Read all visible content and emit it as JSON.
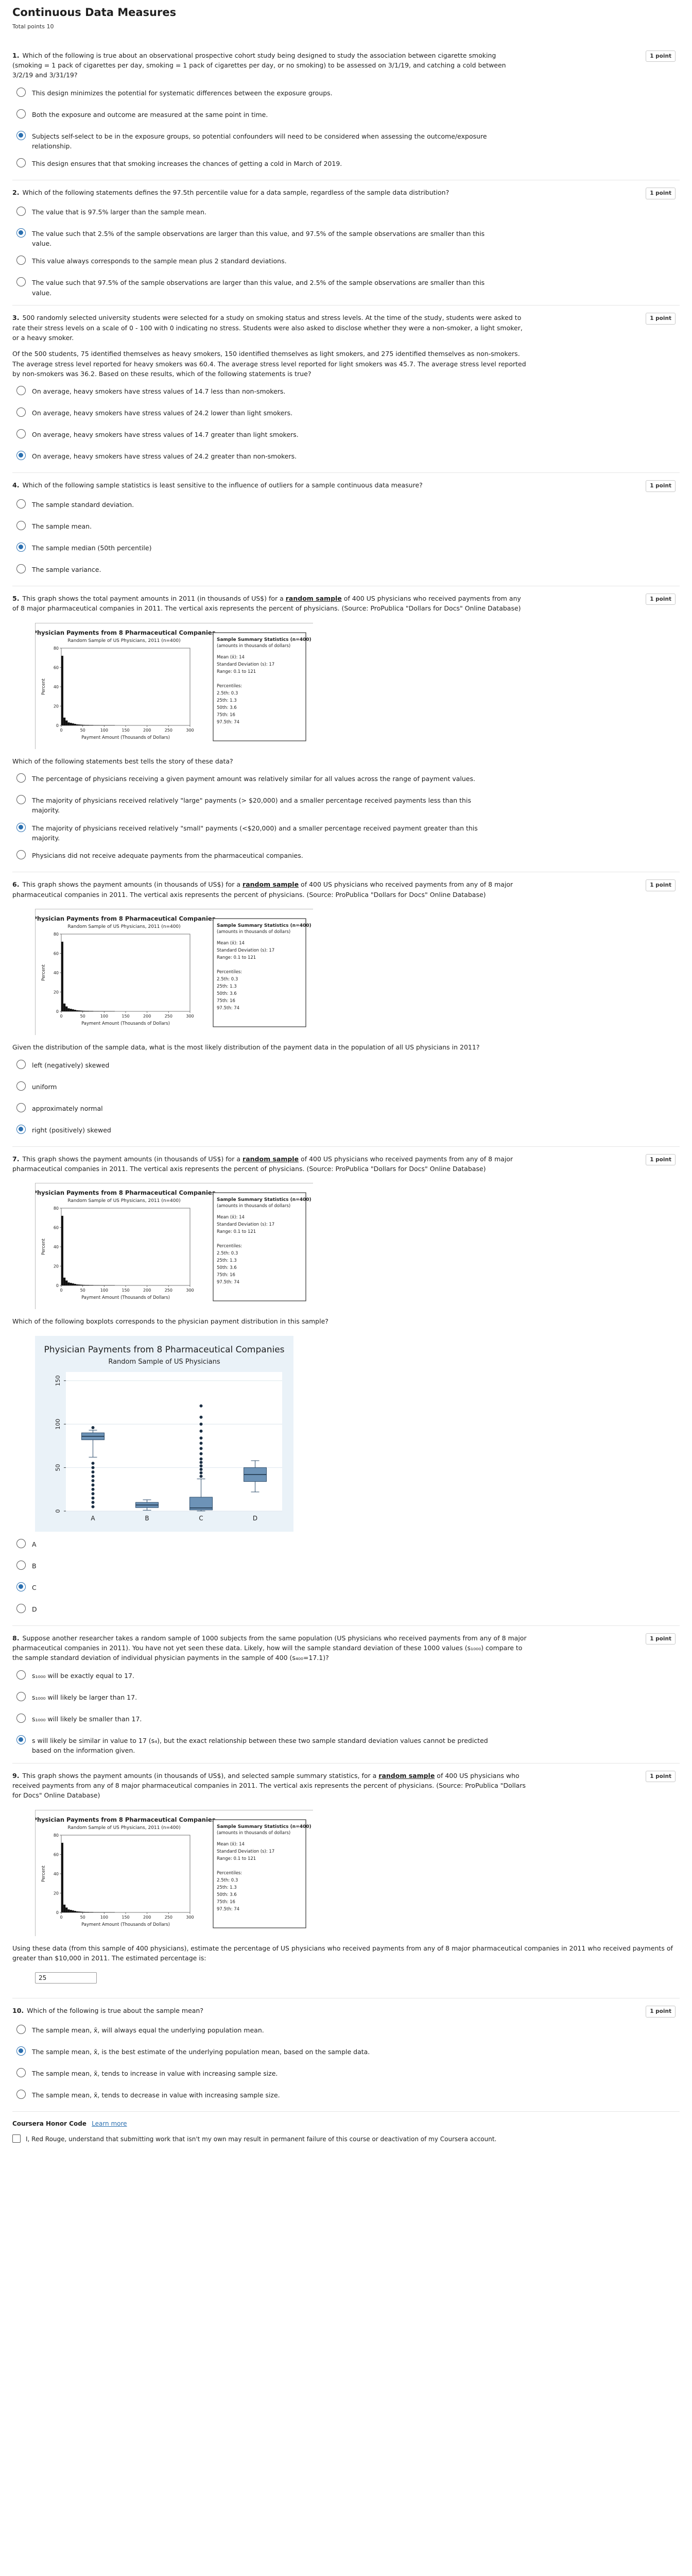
{
  "page": {
    "title": "Continuous Data Measures",
    "total_points": "Total points 10"
  },
  "questions": [
    {
      "num": "1.",
      "points": "1 point",
      "text": "Which of the following is true about an observational prospective cohort study being designed to study the association between cigarette smoking (smoking = 1 pack of cigarettes per day, smoking = 1 pack of cigarettes per day, or no smoking) to be assessed on 3/1/19, and catching a cold between 3/2/19 and 3/31/19?",
      "options": [
        "This design minimizes the potential for systematic differences between the exposure groups.",
        "Both the exposure and outcome are measured at the same point in time.",
        "Subjects self-select to be in the exposure groups, so potential confounders will need to be considered when assessing the outcome/exposure relationship.",
        "This design ensures that that smoking increases the chances of getting a cold in March of 2019."
      ],
      "selected": 2
    },
    {
      "num": "2.",
      "points": "1 point",
      "text": "Which of the following statements defines the 97.5th percentile value for a data sample, regardless of the sample data distribution?",
      "options": [
        "The value that is 97.5% larger than the sample mean.",
        "The value such that 2.5% of the sample observations are larger than this value, and 97.5% of the sample observations are smaller than this value.",
        "This value always corresponds to the sample mean plus 2 standard deviations.",
        "The value such that 97.5% of the sample observations are larger than this value, and 2.5% of the sample observations are smaller than this value."
      ],
      "selected": 1
    },
    {
      "num": "3.",
      "points": "1 point",
      "text": "500 randomly selected university students were selected for a study on smoking status and stress levels. At the time of the study, students were asked to rate their stress levels on a scale of 0 - 100 with 0 indicating no stress. Students were also asked to disclose whether they were a non-smoker, a light smoker, or a heavy smoker.",
      "text2": "Of the 500 students, 75 identified themselves as heavy smokers, 150 identified themselves as light smokers, and 275 identified themselves as non-smokers. The average stress level reported for heavy smokers was 60.4. The average stress level reported for light smokers was 45.7. The average stress level reported by non-smokers was 36.2. Based on these results, which of the following statements is true?",
      "options": [
        "On average, heavy smokers have stress values of 14.7 less than non-smokers.",
        "On average, heavy smokers have stress values of 24.2 lower than light smokers.",
        "On average, heavy smokers have stress values of 14.7 greater than light smokers.",
        "On average, heavy smokers have stress values of 24.2 greater than non-smokers."
      ],
      "selected": 3
    },
    {
      "num": "4.",
      "points": "1 point",
      "text": "Which of the following sample statistics is least sensitive to the influence of outliers for a sample continuous data measure?",
      "options": [
        "The sample standard deviation.",
        "The sample mean.",
        "The sample median (50th percentile)",
        "The sample variance."
      ],
      "selected": 2
    },
    {
      "num": "5.",
      "points": "1 point",
      "text_a": "This graph shows the total payment amounts in 2011 (in thousands of US$) for a ",
      "text_b": "random sample",
      "text_c": " of 400 US physicians who received payments from any of 8 major pharmaceutical companies in 2011. The vertical axis represents the percent of physicians. (Source: ProPublica \"Dollars for Docs\" Online Database)",
      "stem": "Which of the following statements best tells the story of these data?",
      "options": [
        "The percentage of physicians receiving a given payment amount was relatively similar for all values across the range of payment values.",
        "The majority of physicians received relatively \"large\" payments (> $20,000) and a smaller percentage received payments less than this majority.",
        "The majority of physicians received relatively \"small\" payments (<$20,000) and a smaller percentage received payment greater than this majority.",
        "Physicians did not receive adequate payments from the pharmaceutical companies."
      ],
      "selected": 2
    },
    {
      "num": "6.",
      "points": "1 point",
      "text_a": "This graph shows the payment amounts (in thousands of US$) for a ",
      "text_b": "random sample",
      "text_c": " of 400 US physicians who received payments from any of 8 major pharmaceutical companies in 2011. The vertical axis represents the percent of physicians. (Source: ProPublica \"Dollars for Docs\" Online Database)",
      "stem": "Given the distribution of the sample data, what is the most likely distribution of the payment data in the population of all US physicians in 2011?",
      "options": [
        "left (negatively) skewed",
        "uniform",
        "approximately normal",
        "right (positively) skewed"
      ],
      "selected": 3
    },
    {
      "num": "7.",
      "points": "1 point",
      "text_a": "This graph shows the payment amounts (in thousands of US$) for a ",
      "text_b": "random sample",
      "text_c": " of 400 US physicians who received payments from any of 8 major pharmaceutical companies in 2011. The vertical axis represents the percent of physicians. (Source: ProPublica \"Dollars for Docs\" Online Database)",
      "stem": "Which of the following boxplots corresponds to the physician payment distribution in this sample?",
      "options": [
        "A",
        "B",
        "C",
        "D"
      ],
      "selected": 2
    },
    {
      "num": "8.",
      "points": "1 point",
      "text": "Suppose another researcher takes a random sample of 1000 subjects from the same population (US physicians who received payments from any of 8 major pharmaceutical companies in 2011). You have not yet seen these data. Likely, how will the sample standard deviation of these 1000 values (s₁₀₀₀) compare to the sample standard deviation of individual physician payments in the sample of 400 (s₄₀₀=17.1)?",
      "options": [
        "s₁₀₀₀ will be exactly equal to 17.",
        "s₁₀₀₀ will likely be larger than 17.",
        "s₁₀₀₀ will likely be smaller than 17.",
        "s will likely be similar in value to 17 (s₄), but the exact relationship between these two sample standard deviation values cannot be predicted based on the information given."
      ],
      "selected": 3
    },
    {
      "num": "9.",
      "points": "1 point",
      "text_a": "This graph shows the payment amounts (in thousands of US$), and selected sample summary statistics, for a ",
      "text_b": "random sample",
      "text_c": " of 400 US physicians who received payments from any of 8 major pharmaceutical companies in 2011. The vertical axis represents the percent of physicians. (Source: ProPublica \"Dollars for Docs\" Online Database)",
      "stem": "Using these data (from this sample of 400 physicians), estimate the percentage of US physicians who received payments from any of 8 major pharmaceutical companies in 2011 who received payments of greater than $10,000 in 2011. The estimated percentage is:",
      "input_value": "25"
    },
    {
      "num": "10.",
      "points": "1 point",
      "text": "Which of the following is true about the sample mean?",
      "options": [
        "The sample mean, x̄, will always equal the underlying population mean.",
        "The sample mean, x̄, is the best estimate of the underlying population mean, based on the sample data.",
        "The sample mean, x̄, tends to increase in value with increasing sample size.",
        "The sample mean, x̄, tends to decrease in value with increasing sample size."
      ],
      "selected": 1
    }
  ],
  "histogram": {
    "title": "Physician Payments from 8 Pharmaceutical Companies",
    "subtitle": "Random Sample of US Physicians, 2011 (n=400)",
    "xlabel": "Payment Amount (Thousands of Dollars)",
    "ylabel": "Percent",
    "yticks": [
      "0",
      "20",
      "40",
      "60",
      "80"
    ],
    "xticks": [
      "0",
      "50",
      "100",
      "150",
      "200",
      "250",
      "300"
    ],
    "stats_title": "Sample Summary Statistics (n=400)",
    "stats_sub": "(amounts in thousands of dollars)",
    "stats_lines": [
      "Mean (x̄): 14",
      "Standard Deviation (s): 17",
      "Range:  0.1 to 121",
      "",
      "Percentiles:",
      "2.5th:  0.3",
      "25th:   1.3",
      "50th:   3.6",
      "75th:   16",
      "97.5th: 74"
    ]
  },
  "chart_data": [
    {
      "type": "bar",
      "title": "Physician Payments from 8 Pharmaceutical Companies",
      "subtitle": "Random Sample of US Physicians, 2011 (n=400)",
      "xlabel": "Payment Amount (Thousands of Dollars)",
      "ylabel": "Percent",
      "bin_starts": [
        0,
        5,
        10,
        15,
        20,
        25,
        30,
        35,
        40,
        45,
        50,
        55,
        60,
        65,
        70,
        75,
        80,
        85,
        90,
        95,
        100,
        105,
        110,
        115,
        120
      ],
      "bin_width": 5,
      "values": [
        72,
        8,
        5,
        3,
        2.5,
        2,
        1.5,
        1,
        0.8,
        0.6,
        0.5,
        0.4,
        0.4,
        0.3,
        0.3,
        0.2,
        0.2,
        0.2,
        0.1,
        0.1,
        0.1,
        0.1,
        0.1,
        0.1,
        0.1
      ],
      "xlim": [
        0,
        300
      ],
      "ylim": [
        0,
        80
      ]
    },
    {
      "type": "boxplot",
      "title": "Physician Payments from 8 Pharmaceutical Companies",
      "subtitle": "Random Sample of US Physicians",
      "categories": [
        "A",
        "B",
        "C",
        "D"
      ],
      "yticks": [
        "0",
        "50",
        "100",
        "150"
      ],
      "ylim": [
        0,
        160
      ],
      "boxes": [
        {
          "name": "A",
          "whisker_low": 62,
          "q1": 82,
          "median": 86,
          "q3": 90,
          "whisker_high": 93,
          "outliers_low": [
            55,
            50,
            45,
            40,
            35,
            30,
            25,
            20,
            15,
            10,
            5
          ],
          "outliers_high": [
            96
          ]
        },
        {
          "name": "B",
          "whisker_low": 1,
          "q1": 4,
          "median": 7,
          "q3": 10,
          "whisker_high": 13,
          "outliers_low": [],
          "outliers_high": []
        },
        {
          "name": "C",
          "whisker_low": 0.1,
          "q1": 1.3,
          "median": 3.6,
          "q3": 16,
          "whisker_high": 37,
          "outliers_low": [],
          "outliers_high": [
            40,
            44,
            48,
            52,
            56,
            60,
            66,
            72,
            78,
            84,
            92,
            100,
            108,
            121
          ]
        },
        {
          "name": "D",
          "whisker_low": 22,
          "q1": 34,
          "median": 42,
          "q3": 50,
          "whisker_high": 58,
          "outliers_low": [],
          "outliers_high": []
        }
      ]
    }
  ],
  "boxplot": {
    "title": "Physician Payments from 8 Pharmaceutical Companies",
    "subtitle": "Random Sample of US Physicians",
    "yticks": [
      "0",
      "50",
      "100",
      "150"
    ],
    "categories": [
      "A",
      "B",
      "C",
      "D"
    ]
  },
  "honor": {
    "title": "Coursera Honor Code",
    "learn_more": "Learn more",
    "text": "I, Red Rouge, understand that submitting work that isn't my own may result in permanent failure of this course or deactivation of my Coursera account."
  }
}
